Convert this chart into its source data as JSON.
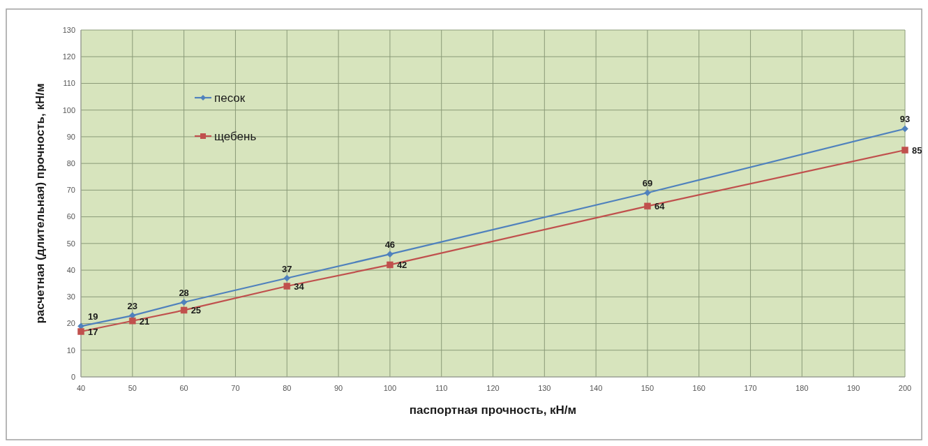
{
  "chart_data": {
    "type": "line",
    "xlabel": "паспортная прочность, кН/м",
    "ylabel": "расчетная (длительная) прочность, кН/м",
    "x": [
      40,
      50,
      60,
      80,
      100,
      150,
      200
    ],
    "series": [
      {
        "name": "песок",
        "color": "#4f81bd",
        "marker": "diamond",
        "values": [
          19,
          23,
          28,
          37,
          46,
          69,
          93
        ]
      },
      {
        "name": "щебень",
        "color": "#c0504d",
        "marker": "square",
        "values": [
          17,
          21,
          25,
          34,
          42,
          64,
          85
        ]
      }
    ],
    "xlim": [
      40,
      200
    ],
    "xticks": [
      40,
      50,
      60,
      70,
      80,
      90,
      100,
      110,
      120,
      130,
      140,
      150,
      160,
      170,
      180,
      190,
      200
    ],
    "ylim": [
      0,
      130
    ],
    "yticks": [
      0,
      10,
      20,
      30,
      40,
      50,
      60,
      70,
      80,
      90,
      100,
      110,
      120,
      130
    ],
    "grid": true,
    "legend": "top left",
    "data_labels": true,
    "line_style": "solid"
  }
}
